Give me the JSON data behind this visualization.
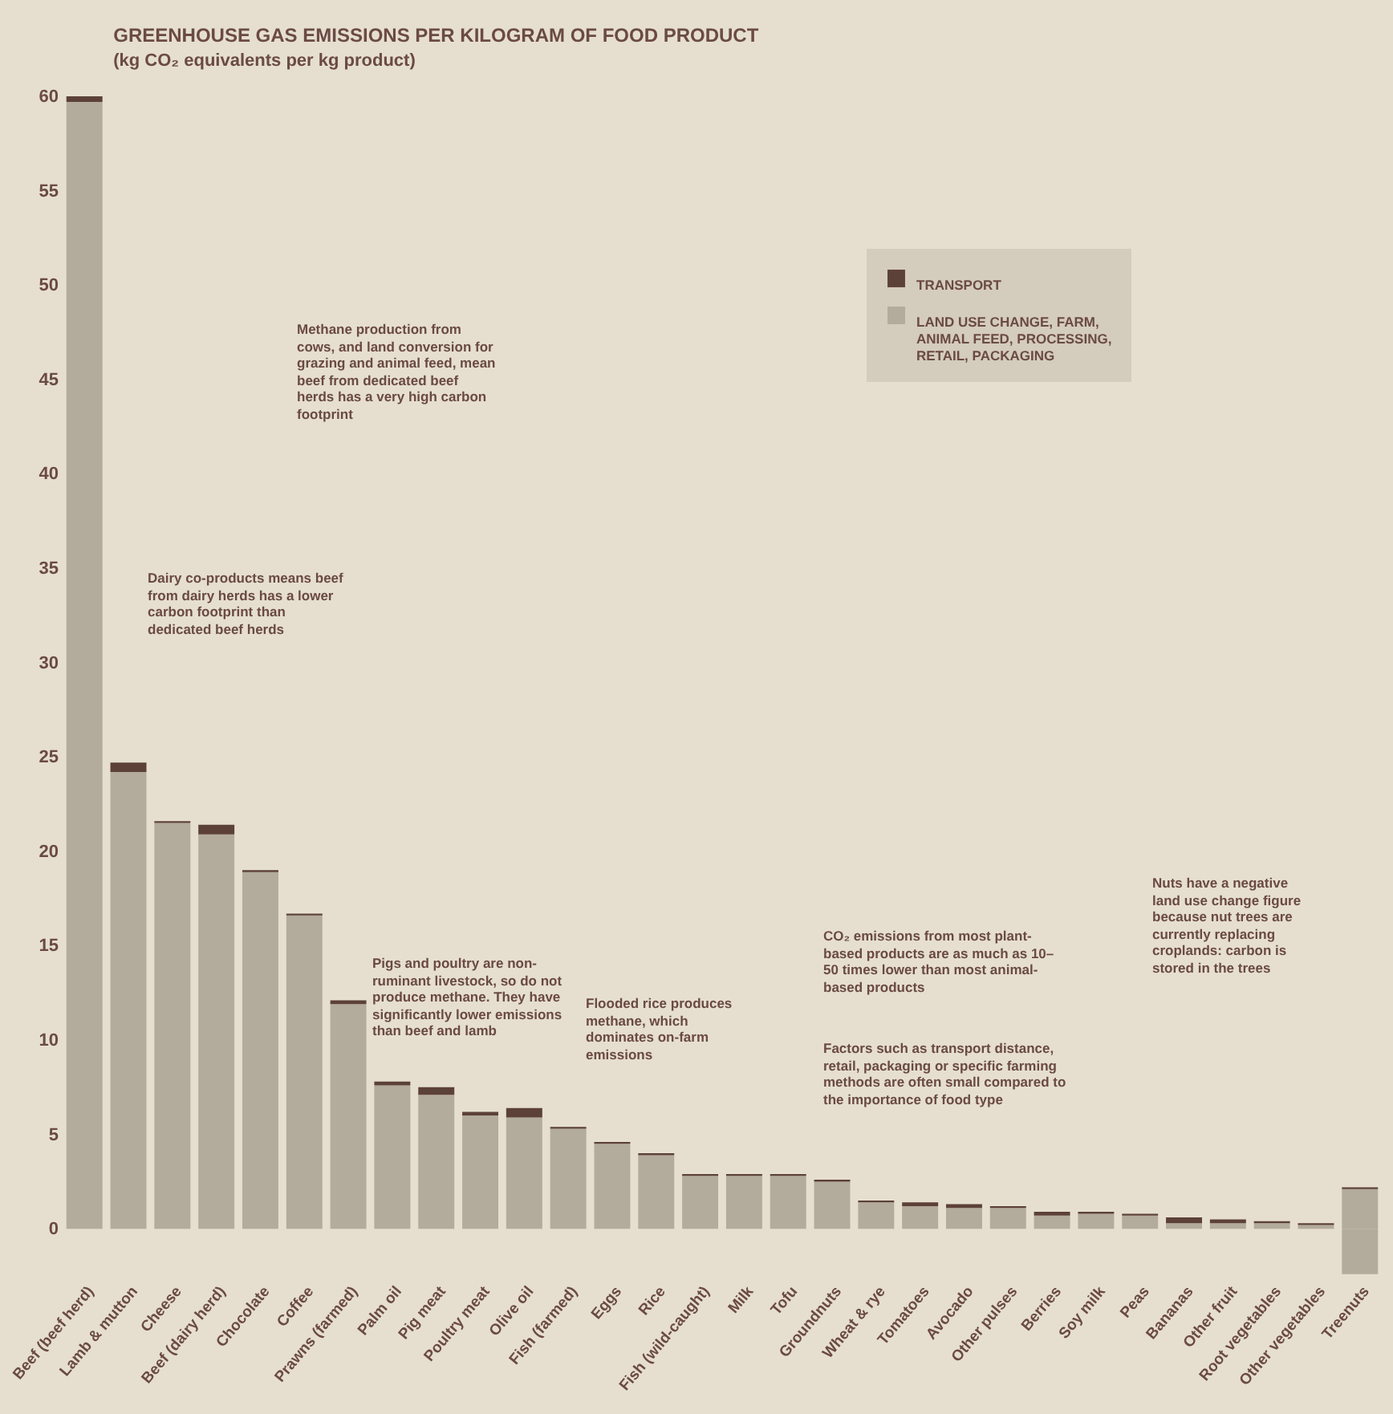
{
  "chart_data": {
    "type": "bar",
    "stacked": true,
    "title": "GREENHOUSE GAS EMISSIONS PER KILOGRAM OF FOOD PRODUCT",
    "subtitle": "(kg CO₂ equivalents per kg product)",
    "categories": [
      "Beef (beef herd)",
      "Lamb & mutton",
      "Cheese",
      "Beef (dairy herd)",
      "Chocolate",
      "Coffee",
      "Prawns (farmed)",
      "Palm oil",
      "Pig meat",
      "Poultry meat",
      "Olive oil",
      "Fish (farmed)",
      "Eggs",
      "Rice",
      "Fish (wild-caught)",
      "Milk",
      "Tofu",
      "Groundnuts",
      "Wheat & rye",
      "Tomatoes",
      "Avocado",
      "Other pulses",
      "Berries",
      "Soy milk",
      "Peas",
      "Bananas",
      "Other fruit",
      "Root vegetables",
      "Other vegetables",
      "Treenuts"
    ],
    "series": [
      {
        "name": "LAND USE CHANGE, FARM, ANIMAL FEED, PROCESSING, RETAIL, PACKAGING",
        "color": "#b3ab9c",
        "values": [
          59.7,
          24.2,
          21.5,
          20.9,
          18.9,
          16.6,
          11.9,
          7.6,
          7.1,
          6.0,
          5.9,
          5.3,
          4.5,
          3.9,
          2.8,
          2.8,
          2.8,
          2.5,
          1.4,
          1.2,
          1.1,
          1.1,
          0.7,
          0.8,
          0.7,
          0.3,
          0.3,
          0.3,
          0.2,
          2.1
        ]
      },
      {
        "name": "TRANSPORT",
        "color": "#5c4139",
        "values": [
          0.3,
          0.5,
          0.1,
          0.5,
          0.1,
          0.1,
          0.2,
          0.2,
          0.4,
          0.2,
          0.5,
          0.1,
          0.1,
          0.1,
          0.1,
          0.1,
          0.1,
          0.1,
          0.1,
          0.2,
          0.2,
          0.1,
          0.2,
          0.1,
          0.1,
          0.3,
          0.2,
          0.1,
          0.1,
          0.1
        ]
      },
      {
        "color": "#b3ab9c",
        "values": [
          null,
          null,
          null,
          null,
          null,
          null,
          null,
          null,
          null,
          null,
          null,
          null,
          null,
          null,
          null,
          null,
          null,
          null,
          null,
          null,
          null,
          null,
          null,
          null,
          null,
          null,
          null,
          null,
          null,
          -2.4
        ]
      }
    ],
    "ylim": [
      -2.5,
      60
    ],
    "yticks": [
      0,
      5,
      10,
      15,
      20,
      25,
      30,
      35,
      40,
      45,
      50,
      55,
      60
    ],
    "legend": "top right",
    "annotations": [
      "Methane production from cows, and land conversion for grazing and animal feed, mean beef from dedicated beef herds has a very high carbon footprint",
      "Dairy co-products means beef from dairy herds has a lower carbon footprint than dedicated beef herds",
      "Pigs and poultry are non-ruminant livestock, so do not produce methane. They have significantly lower emissions than beef and lamb",
      "Flooded rice produces methane, which dominates on-farm emissions",
      "CO₂ emissions from most plant-based products are as much as 10–50 times lower than most animal-based products",
      "Factors such as transport distance, retail, packaging or specific farming methods are often small compared to the importance of food type",
      "Nuts have a negative land use change figure because nut trees are currently replacing croplands: carbon is stored in the trees"
    ]
  }
}
